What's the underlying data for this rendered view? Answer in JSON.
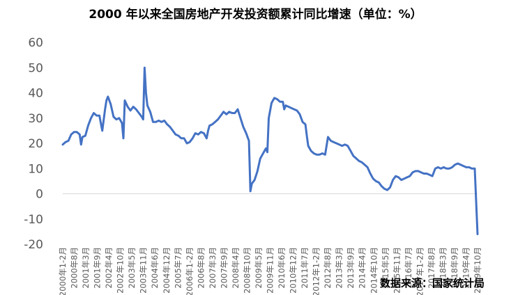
{
  "chart_data": {
    "type": "line",
    "title": "2000 年以来全国房地产开发投资额累计同比增速（单位：%）",
    "xlabel": "",
    "ylabel": "",
    "ylim": [
      -20,
      60
    ],
    "yticks": [
      "60",
      "50",
      "40",
      "30",
      "20",
      "10",
      "0",
      "-10",
      "-20"
    ],
    "xtick_labels": [
      "2000年1-2月",
      "2000年8月",
      "2001年3月",
      "2001年9月",
      "2002年4月",
      "2002年10月",
      "2003年5月",
      "2003年11月",
      "2004年6月",
      "2004年12月",
      "2005年7月",
      "2006年1-2月",
      "2006年8月",
      "2007年3月",
      "2007年9月",
      "2008年4月",
      "2008年10月",
      "2009年5月",
      "2009年11月",
      "2010年6月",
      "2010年12月",
      "2011年7月",
      "2012年1-2月",
      "2012年8月",
      "2013年3月",
      "2013年9月",
      "2014年4月",
      "2014年10月",
      "2015年5月",
      "2015年11月",
      "2016年7月",
      "2017年1-2月",
      "2017年8月",
      "2018年3月",
      "2018年9月",
      "2019年4月",
      "2019年10月"
    ],
    "grid": false,
    "legend": "none",
    "line_color": "#4472c4",
    "series": [
      {
        "name": "",
        "values": [
          [
            0,
            19.5
          ],
          [
            1,
            20.5
          ],
          [
            2,
            21.0
          ],
          [
            3,
            23.5
          ],
          [
            4,
            24.5
          ],
          [
            5,
            24.5
          ],
          [
            6,
            23.5
          ],
          [
            6.5,
            19.5
          ],
          [
            7,
            22.5
          ],
          [
            8,
            23.0
          ],
          [
            9,
            27.0
          ],
          [
            10,
            30.0
          ],
          [
            11,
            32.0
          ],
          [
            12,
            31.0
          ],
          [
            13,
            31.0
          ],
          [
            14,
            25.0
          ],
          [
            15,
            33.5
          ],
          [
            15.5,
            37.0
          ],
          [
            16,
            38.5
          ],
          [
            17,
            35.5
          ],
          [
            18,
            30.5
          ],
          [
            19,
            29.5
          ],
          [
            20,
            30.0
          ],
          [
            21,
            28.0
          ],
          [
            21.5,
            22.0
          ],
          [
            22,
            37.0
          ],
          [
            23,
            34.5
          ],
          [
            24,
            33.0
          ],
          [
            25,
            34.5
          ],
          [
            26,
            33.5
          ],
          [
            27,
            32.0
          ],
          [
            28,
            30.5
          ],
          [
            28.5,
            29.5
          ],
          [
            29,
            50.0
          ],
          [
            29.5,
            40.0
          ],
          [
            30,
            35.0
          ],
          [
            31,
            32.5
          ],
          [
            32,
            28.5
          ],
          [
            33,
            28.5
          ],
          [
            34,
            29.0
          ],
          [
            35,
            28.5
          ],
          [
            36,
            29.0
          ],
          [
            37,
            27.5
          ],
          [
            38,
            26.5
          ],
          [
            39,
            25.0
          ],
          [
            40,
            23.5
          ],
          [
            41,
            23.0
          ],
          [
            42,
            22.0
          ],
          [
            43,
            22.0
          ],
          [
            44,
            20.0
          ],
          [
            45,
            20.5
          ],
          [
            46,
            22.0
          ],
          [
            47,
            24.0
          ],
          [
            48,
            23.5
          ],
          [
            49,
            24.5
          ],
          [
            50,
            24.0
          ],
          [
            51,
            22.0
          ],
          [
            51.5,
            25.0
          ],
          [
            52,
            27.0
          ],
          [
            53,
            27.5
          ],
          [
            54,
            28.5
          ],
          [
            55,
            29.5
          ],
          [
            56,
            31.0
          ],
          [
            57,
            32.5
          ],
          [
            58,
            31.5
          ],
          [
            59,
            32.5
          ],
          [
            60,
            32.0
          ],
          [
            61,
            32.0
          ],
          [
            62,
            33.5
          ],
          [
            63,
            30.0
          ],
          [
            64,
            26.5
          ],
          [
            65,
            24.0
          ],
          [
            66,
            21.0
          ],
          [
            66.5,
            1.0
          ],
          [
            67,
            4.0
          ],
          [
            68,
            5.5
          ],
          [
            69,
            9.0
          ],
          [
            70,
            14.0
          ],
          [
            71,
            16.0
          ],
          [
            72,
            18.0
          ],
          [
            72.5,
            16.5
          ],
          [
            73,
            30.0
          ],
          [
            74,
            36.0
          ],
          [
            75,
            38.0
          ],
          [
            76,
            37.5
          ],
          [
            77,
            36.5
          ],
          [
            78,
            36.5
          ],
          [
            78.5,
            33.5
          ],
          [
            79,
            35.0
          ],
          [
            80,
            34.5
          ],
          [
            81,
            34.0
          ],
          [
            82,
            33.5
          ],
          [
            83,
            33.0
          ],
          [
            84,
            31.5
          ],
          [
            85,
            28.5
          ],
          [
            86,
            27.5
          ],
          [
            86.5,
            23.0
          ],
          [
            87,
            19.0
          ],
          [
            88,
            17.0
          ],
          [
            89,
            16.0
          ],
          [
            90,
            15.5
          ],
          [
            91,
            15.5
          ],
          [
            92,
            16.0
          ],
          [
            93,
            15.5
          ],
          [
            94,
            22.5
          ],
          [
            95,
            21.0
          ],
          [
            96,
            20.5
          ],
          [
            97,
            20.0
          ],
          [
            98,
            19.5
          ],
          [
            99,
            19.0
          ],
          [
            100,
            19.5
          ],
          [
            101,
            19.0
          ],
          [
            102,
            17.0
          ],
          [
            103,
            15.0
          ],
          [
            104,
            14.0
          ],
          [
            105,
            13.0
          ],
          [
            106,
            12.5
          ],
          [
            107,
            11.5
          ],
          [
            108,
            10.5
          ],
          [
            109,
            8.0
          ],
          [
            110,
            6.0
          ],
          [
            111,
            5.0
          ],
          [
            112,
            4.5
          ],
          [
            113,
            3.0
          ],
          [
            114,
            2.0
          ],
          [
            115,
            1.5
          ],
          [
            116,
            2.5
          ],
          [
            117,
            5.5
          ],
          [
            118,
            7.0
          ],
          [
            119,
            6.5
          ],
          [
            120,
            5.5
          ],
          [
            121,
            6.0
          ],
          [
            122,
            6.5
          ],
          [
            123,
            7.0
          ],
          [
            124,
            8.5
          ],
          [
            125,
            9.0
          ],
          [
            126,
            9.0
          ],
          [
            127,
            8.5
          ],
          [
            128,
            8.0
          ],
          [
            129,
            8.0
          ],
          [
            130,
            7.5
          ],
          [
            131,
            7.0
          ],
          [
            132,
            10.0
          ],
          [
            133,
            10.5
          ],
          [
            134,
            10.0
          ],
          [
            135,
            10.5
          ],
          [
            136,
            10.0
          ],
          [
            137,
            10.0
          ],
          [
            138,
            10.5
          ],
          [
            139,
            11.5
          ],
          [
            140,
            12.0
          ],
          [
            141,
            11.5
          ],
          [
            142,
            11.0
          ],
          [
            143,
            10.5
          ],
          [
            144,
            10.5
          ],
          [
            145,
            10.0
          ],
          [
            146,
            10.0
          ],
          [
            147,
            -16.0
          ]
        ]
      }
    ],
    "x_range": [
      0,
      147
    ]
  },
  "source_note": "数据来源：国家统计局"
}
